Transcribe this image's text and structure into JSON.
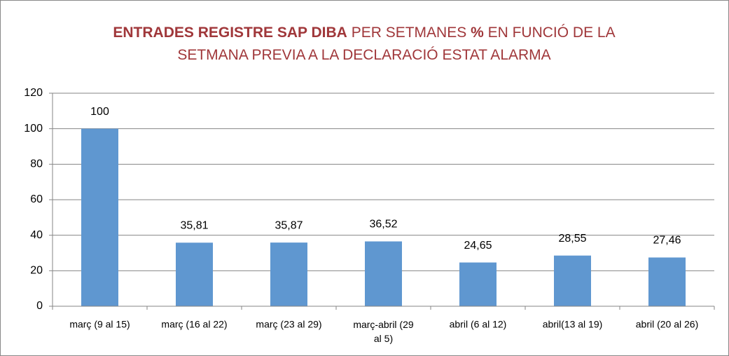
{
  "chart_data": {
    "type": "bar",
    "title_lines": [
      [
        {
          "text": "ENTRADES REGISTRE SAP DIBA",
          "bold": true
        },
        {
          "text": " PER SETMANES ",
          "bold": false
        },
        {
          "text": "%",
          "bold": true
        },
        {
          "text": " EN FUNCIÓ DE LA",
          "bold": false
        }
      ],
      [
        {
          "text": "SETMANA PREVIA A LA DECLARACIÓ ESTAT ALARMA",
          "bold": false
        }
      ]
    ],
    "title_color": "#a0373a",
    "categories": [
      "març (9 al 15)",
      "març (16 al 22)",
      "març (23 al 29)",
      "març-abril (29 al 5)",
      "abril (6 al 12)",
      "abril(13 al 19)",
      "abril (20 al 26)"
    ],
    "values": [
      100,
      35.81,
      35.87,
      36.52,
      24.65,
      28.55,
      27.46
    ],
    "value_labels": [
      "100",
      "35,81",
      "35,87",
      "36,52",
      "24,65",
      "28,55",
      "27,46"
    ],
    "color": "#5f97d0",
    "ylim": [
      0,
      120
    ],
    "yticks": [
      0,
      20,
      40,
      60,
      80,
      100,
      120
    ],
    "grid": true
  }
}
